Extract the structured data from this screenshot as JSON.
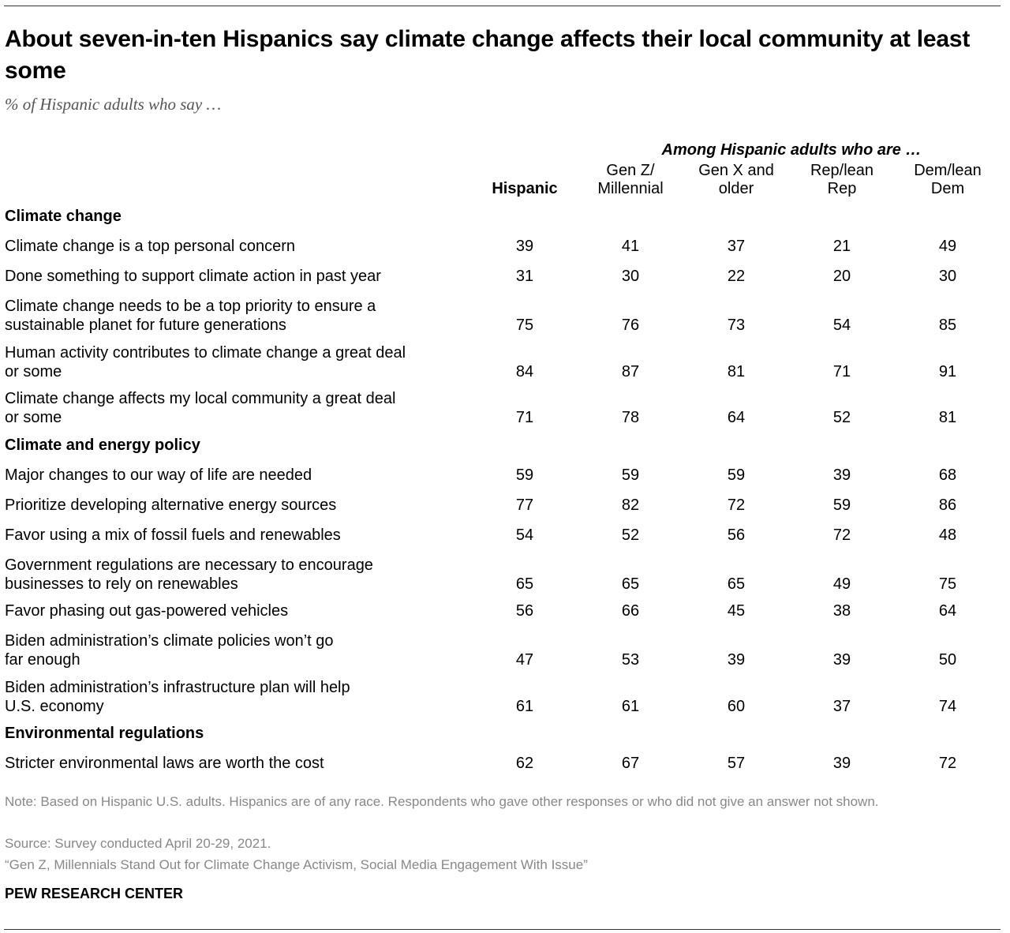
{
  "title": "About seven-in-ten Hispanics say climate change affects their local community at least some",
  "subtitle": "% of Hispanic adults who say …",
  "chart_data": {
    "type": "table",
    "group_header": "Among Hispanic adults who are …",
    "columns": [
      {
        "label_lines": [
          "Hispanic"
        ],
        "bold": true
      },
      {
        "label_lines": [
          "Gen Z/",
          "Millennial"
        ],
        "bold": false
      },
      {
        "label_lines": [
          "Gen X and",
          "older"
        ],
        "bold": false
      },
      {
        "label_lines": [
          "Rep/lean",
          "Rep"
        ],
        "bold": false
      },
      {
        "label_lines": [
          "Dem/lean",
          "Dem"
        ],
        "bold": false
      }
    ],
    "sections": [
      {
        "name": "Climate change",
        "rows": [
          {
            "label_lines": [
              "Climate change is a top personal concern"
            ],
            "values": [
              39,
              41,
              37,
              21,
              49
            ]
          },
          {
            "label_lines": [
              "Done something to support climate action in past year"
            ],
            "values": [
              31,
              30,
              22,
              20,
              30
            ]
          },
          {
            "label_lines": [
              "Climate change needs to be a top priority to ensure a",
              "sustainable planet for future generations"
            ],
            "values": [
              75,
              76,
              73,
              54,
              85
            ]
          },
          {
            "label_lines": [
              "Human activity contributes to climate change a great deal",
              "or some"
            ],
            "values": [
              84,
              87,
              81,
              71,
              91
            ]
          },
          {
            "label_lines": [
              "Climate change affects my local community a great deal",
              "or some"
            ],
            "values": [
              71,
              78,
              64,
              52,
              81
            ]
          }
        ]
      },
      {
        "name": "Climate and energy policy",
        "rows": [
          {
            "label_lines": [
              "Major changes to our way of life are needed"
            ],
            "values": [
              59,
              59,
              59,
              39,
              68
            ]
          },
          {
            "label_lines": [
              "Prioritize developing alternative energy sources"
            ],
            "values": [
              77,
              82,
              72,
              59,
              86
            ]
          },
          {
            "label_lines": [
              "Favor using a mix of fossil fuels and renewables"
            ],
            "values": [
              54,
              52,
              56,
              72,
              48
            ]
          },
          {
            "label_lines": [
              "Government regulations are necessary to encourage",
              "businesses to rely on renewables"
            ],
            "values": [
              65,
              65,
              65,
              49,
              75
            ]
          },
          {
            "label_lines": [
              "Favor phasing out gas-powered vehicles"
            ],
            "values": [
              56,
              66,
              45,
              38,
              64
            ]
          },
          {
            "label_lines": [
              "Biden administration’s climate policies won’t go",
              "far enough"
            ],
            "values": [
              47,
              53,
              39,
              39,
              50
            ]
          },
          {
            "label_lines": [
              "Biden administration’s infrastructure plan will help",
              "U.S. economy"
            ],
            "values": [
              61,
              61,
              60,
              37,
              74
            ]
          }
        ]
      },
      {
        "name": "Environmental regulations",
        "rows": [
          {
            "label_lines": [
              "Stricter environmental laws are worth the cost"
            ],
            "values": [
              62,
              67,
              57,
              39,
              72
            ]
          }
        ]
      }
    ]
  },
  "notes": {
    "note": "Note: Based on Hispanic U.S. adults. Hispanics are of any race. Respondents who gave other responses or who did not give an answer not shown.",
    "source": "Source: Survey conducted April 20-29, 2021.",
    "report": "“Gen Z, Millennials Stand Out for Climate Change Activism, Social Media Engagement With Issue”"
  },
  "brand": "PEW RESEARCH CENTER"
}
